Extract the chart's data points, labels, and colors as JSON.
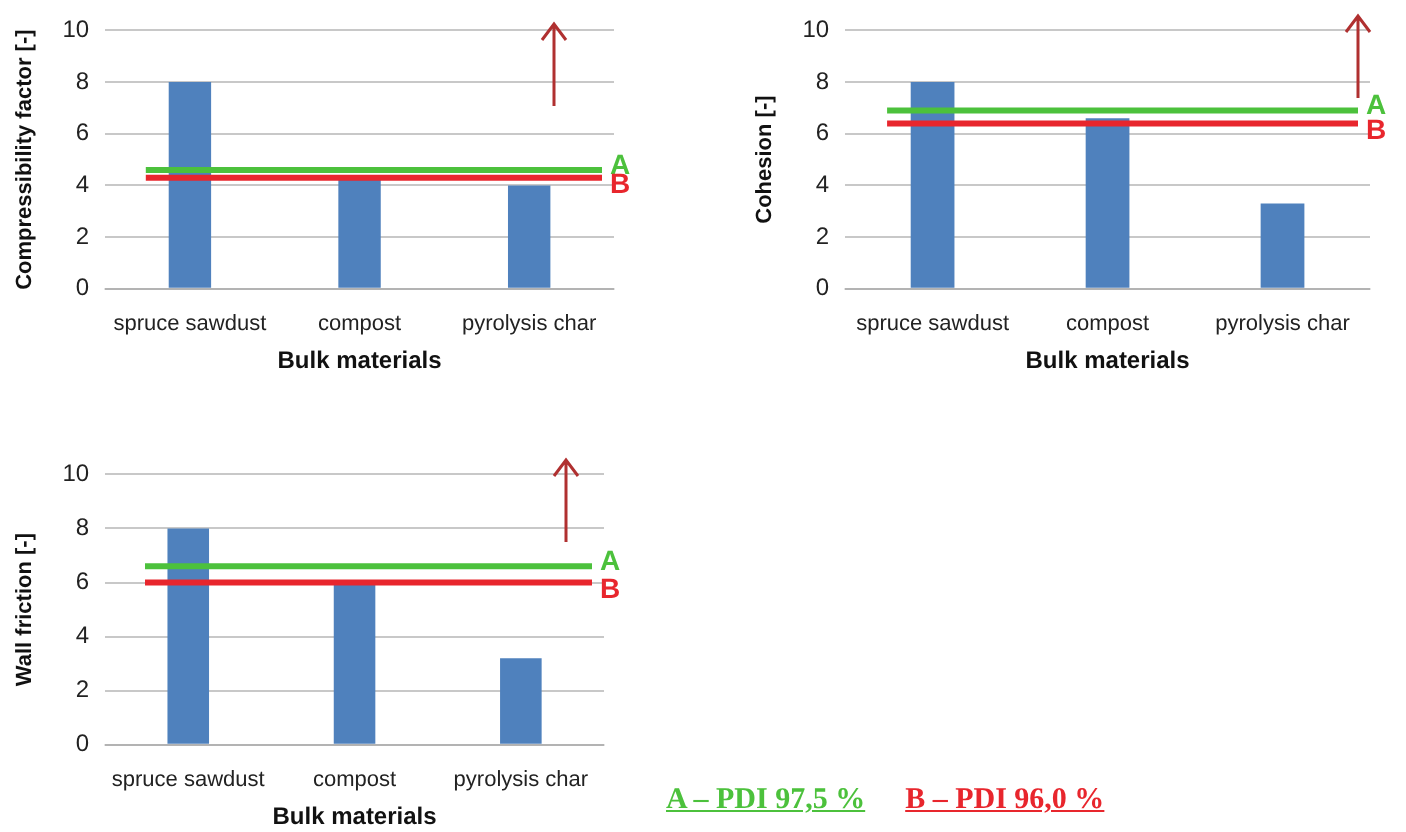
{
  "chart_data": [
    {
      "type": "bar",
      "ylabel": "Compressibility factor [-]",
      "xlabel": "Bulk materials",
      "categories": [
        "spruce sawdust",
        "compost",
        "pyrolysis char"
      ],
      "values": [
        8,
        4.3,
        4.0
      ],
      "color": "#4f81bd",
      "ylim": [
        0,
        10
      ],
      "yticks": [
        0,
        2,
        4,
        6,
        8,
        10
      ],
      "grid": "y",
      "legend": false,
      "ref_lines": [
        {
          "axis": "y",
          "value": 4.6,
          "label": "A",
          "color": "#4cc13c"
        },
        {
          "axis": "y",
          "value": 4.3,
          "label": "B",
          "color": "#e8262d"
        }
      ]
    },
    {
      "type": "bar",
      "ylabel": "Cohesion [-]",
      "xlabel": "Bulk materials",
      "categories": [
        "spruce sawdust",
        "compost",
        "pyrolysis char"
      ],
      "values": [
        8,
        6.6,
        3.3
      ],
      "color": "#4f81bd",
      "ylim": [
        0,
        10
      ],
      "yticks": [
        0,
        2,
        4,
        6,
        8,
        10
      ],
      "grid": "y",
      "legend": false,
      "ref_lines": [
        {
          "axis": "y",
          "value": 6.9,
          "label": "A",
          "color": "#4cc13c"
        },
        {
          "axis": "y",
          "value": 6.4,
          "label": "B",
          "color": "#e8262d"
        }
      ]
    },
    {
      "type": "bar",
      "ylabel": "Wall friction [-]",
      "xlabel": "Bulk materials",
      "categories": [
        "spruce sawdust",
        "compost",
        "pyrolysis char"
      ],
      "values": [
        8,
        6.0,
        3.2
      ],
      "color": "#4f81bd",
      "ylim": [
        0,
        10
      ],
      "yticks": [
        0,
        2,
        4,
        6,
        8,
        10
      ],
      "grid": "y",
      "legend": false,
      "ref_lines": [
        {
          "axis": "y",
          "value": 6.6,
          "label": "A",
          "color": "#4cc13c"
        },
        {
          "axis": "y",
          "value": 6.0,
          "label": "B",
          "color": "#e8262d"
        }
      ]
    },
    {
      "type": "other",
      "annotations": [
        "A – PDI 97,5 %",
        "B – PDI 96,0 %"
      ]
    }
  ]
}
